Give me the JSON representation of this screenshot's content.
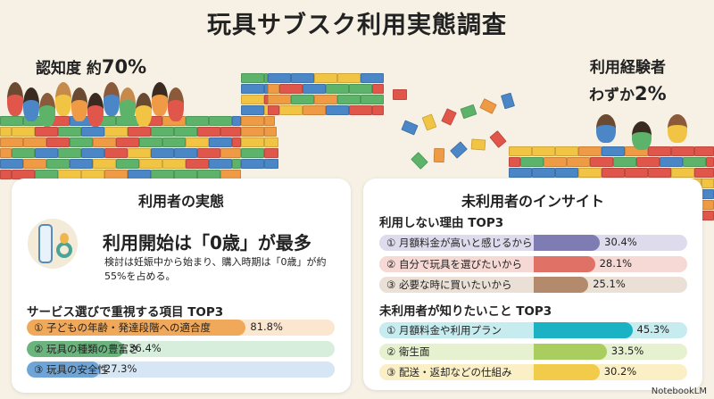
{
  "title": "玩具サブスク利用実態調査",
  "awareness": {
    "label": "認知度 約",
    "value": "70%"
  },
  "experience": {
    "label": "利用経験者",
    "prefix": "わずか",
    "value": "2%"
  },
  "users": {
    "title": "利用者の実態",
    "headline": "利用開始は「0歳」が最多",
    "desc": "検討は妊娠中から始まり、購入時期は「0歳」が約55%を占める。",
    "top3_title": "サービス選びで重視する項目 TOP3",
    "items": [
      {
        "label": "① 子どもの年齢・発達段階への適合度",
        "value": "81.8%",
        "pct": 81.8,
        "color": "#f0a85a",
        "bg": "#fbe6d0"
      },
      {
        "label": "② 玩具の種類の豊富さ",
        "value": "36.4%",
        "pct": 36.4,
        "color": "#6bb47d",
        "bg": "#d8eedd"
      },
      {
        "label": "③ 玩具の安全性",
        "value": "27.3%",
        "pct": 27.3,
        "color": "#6fa5d6",
        "bg": "#d6e6f4"
      }
    ]
  },
  "nonusers": {
    "title": "未利用者のインサイト",
    "reasons_title": "利用しない理由 TOP3",
    "reasons": [
      {
        "label": "① 月額料金が高いと感じるから",
        "value": "30.4%",
        "pct": 30.4,
        "color": "#7f7bb3",
        "bg": "#dedcec"
      },
      {
        "label": "② 自分で玩具を選びたいから",
        "value": "28.1%",
        "pct": 28.1,
        "color": "#e07166",
        "bg": "#f6d8d4"
      },
      {
        "label": "③ 必要な時に買いたいから",
        "value": "25.1%",
        "pct": 25.1,
        "color": "#b38a6b",
        "bg": "#ebe0d6"
      }
    ],
    "wants_title": "未利用者が知りたいこと TOP3",
    "wants": [
      {
        "label": "① 月額料金や利用プラン",
        "value": "45.3%",
        "pct": 45.3,
        "color": "#1bb3c4",
        "bg": "#c6ecef"
      },
      {
        "label": "② 衛生面",
        "value": "33.5%",
        "pct": 33.5,
        "color": "#a9cd5e",
        "bg": "#e6f1cf"
      },
      {
        "label": "③ 配送・返却などの仕組み",
        "value": "30.2%",
        "pct": 30.2,
        "color": "#f2cb4a",
        "bg": "#fbefc6"
      }
    ]
  },
  "watermark": "NotebookLM"
}
